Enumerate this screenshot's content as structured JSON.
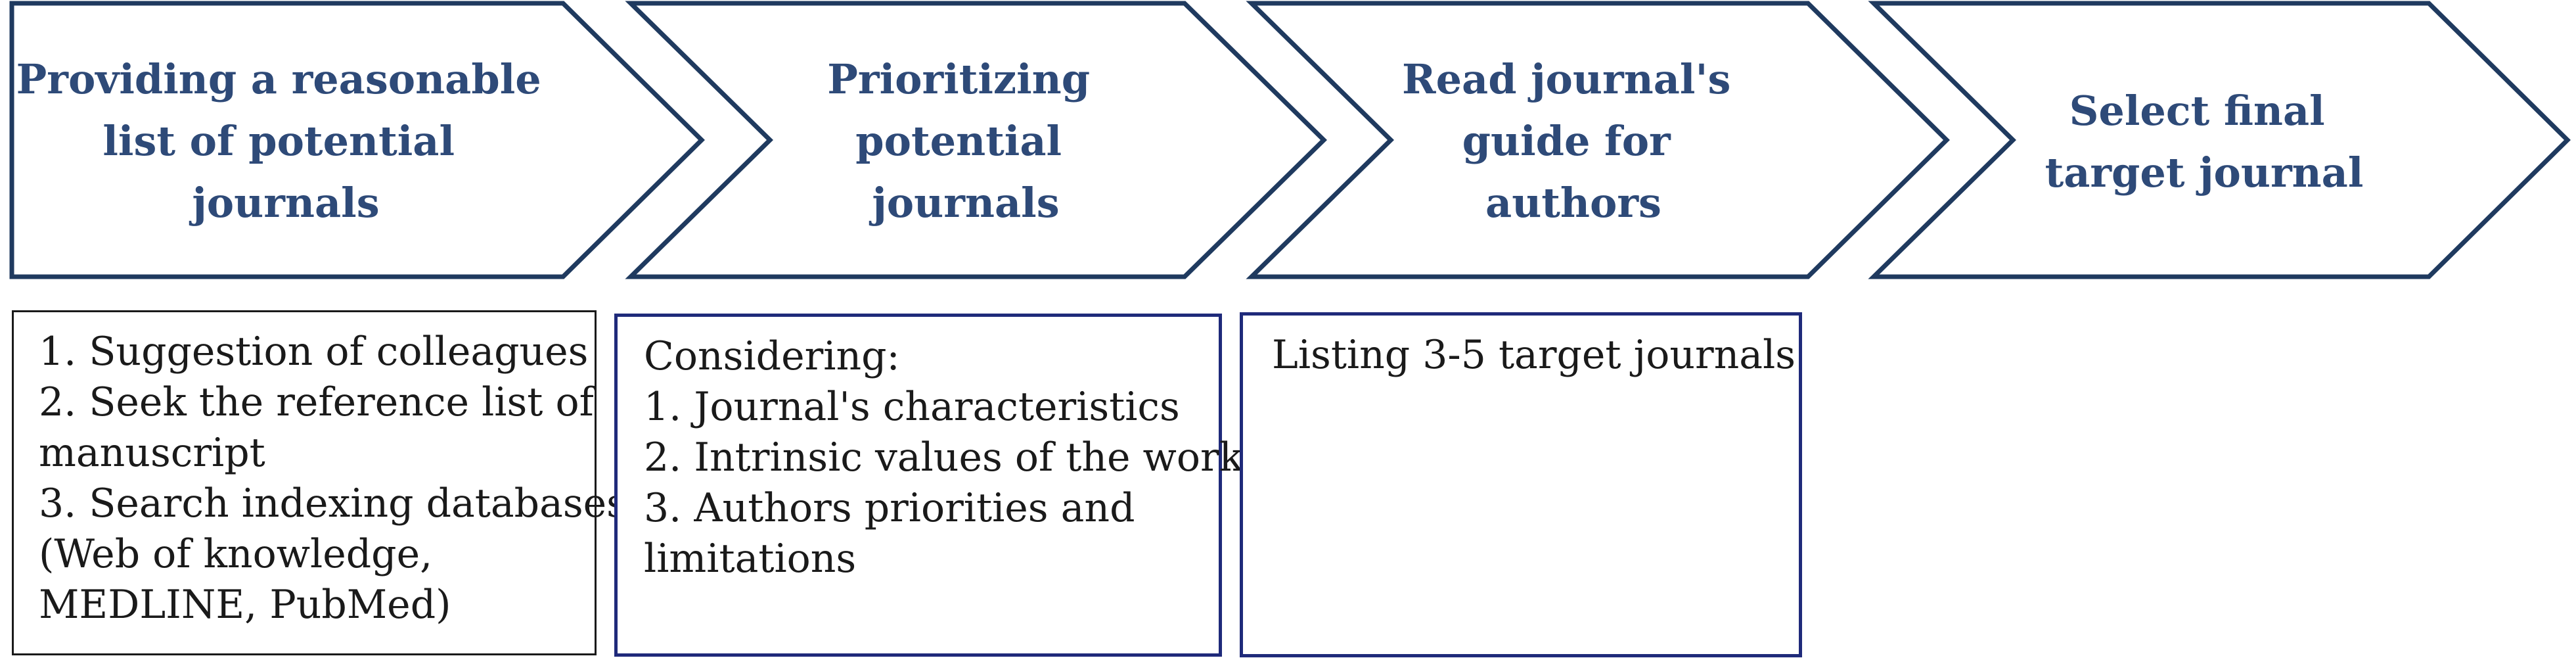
{
  "steps": [
    {
      "title_lines": [
        "Providing a reasonable",
        "list of potential",
        "journals"
      ]
    },
    {
      "title_lines": [
        "Prioritizing",
        "potential",
        "journals"
      ]
    },
    {
      "title_lines": [
        "Read journal's",
        "guide for",
        "authors"
      ]
    },
    {
      "title_lines": [
        "Select final",
        "target journal"
      ]
    }
  ],
  "details": [
    {
      "lines": [
        "1. Suggestion of colleagues",
        "2. Seek the reference list of",
        "manuscript",
        "3. Search indexing databases",
        "(Web of knowledge,",
        "MEDLINE, PubMed)"
      ]
    },
    {
      "lines": [
        "Considering:",
        "1. Journal's characteristics",
        "2. Intrinsic values of the work",
        "3. Authors priorities and",
        "limitations"
      ]
    },
    {
      "lines": [
        "Listing 3-5 target journals"
      ]
    }
  ],
  "colors": {
    "arrow_stroke": "#1f3a5f",
    "title_text": "#2e4a78",
    "box_border_dark": "#1a1a1a",
    "box_border_navy": "#1f2a7a"
  }
}
